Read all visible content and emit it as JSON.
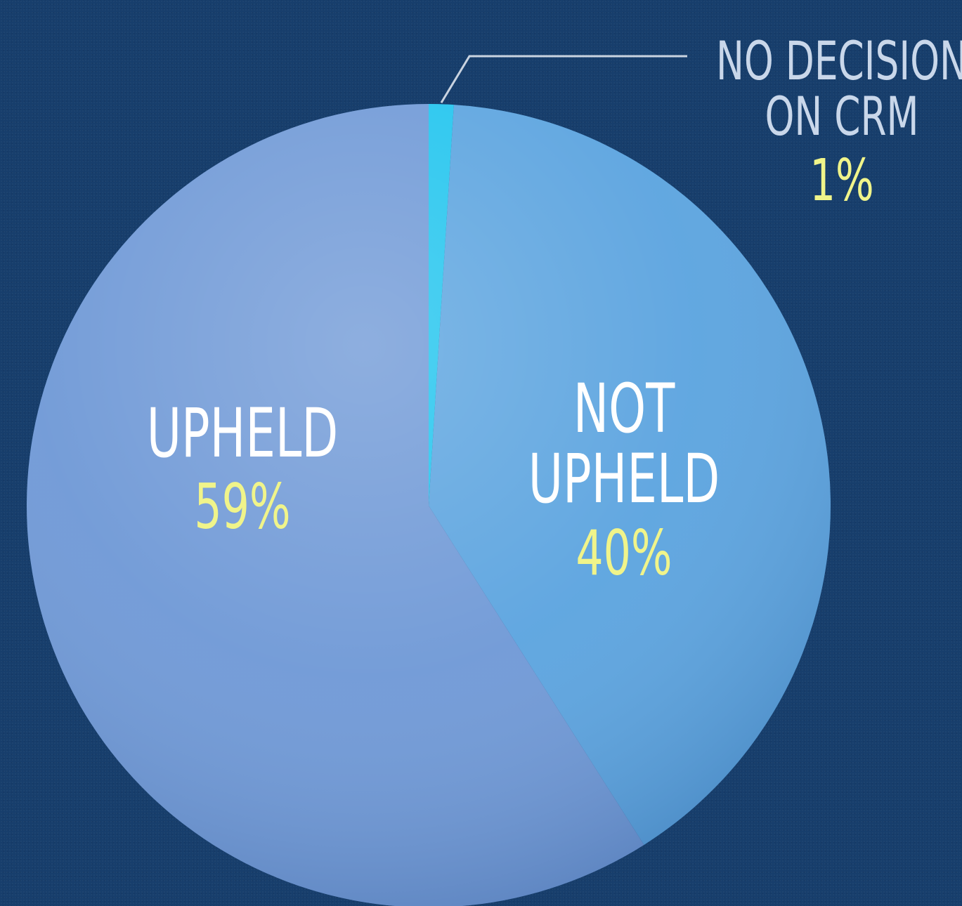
{
  "chart_data": {
    "type": "pie",
    "start_angle_deg": 0,
    "direction": "clockwise",
    "slices": [
      {
        "label_lines": [
          "NO DECISION",
          "ON CRM"
        ],
        "value": 1,
        "value_label": "1%",
        "color": "#1fc4ee",
        "label_placement": "outside-leader"
      },
      {
        "label_lines": [
          "NOT",
          "UPHELD"
        ],
        "value": 40,
        "value_label": "40%",
        "color": "#5aa3df",
        "label_placement": "inside"
      },
      {
        "label_lines": [
          "UPHELD"
        ],
        "value": 59,
        "value_label": "59%",
        "color": "#6e98d6",
        "label_placement": "inside"
      }
    ],
    "colors": {
      "background": "#173e6c",
      "label_text": "#ffffff",
      "outside_label_text": "#c9d7ea",
      "value_text": "#f0f48a",
      "leader_line": "#c9d3e0"
    }
  }
}
